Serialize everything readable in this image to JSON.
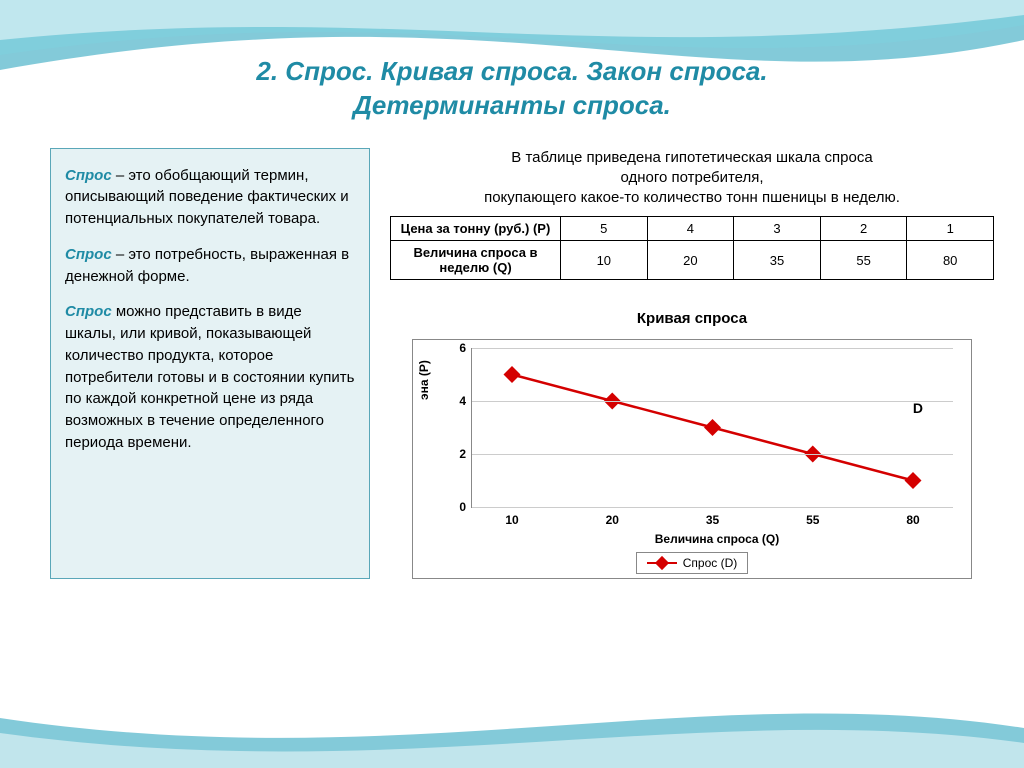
{
  "title_line1": "2. Спрос. Кривая спроса. Закон спроса.",
  "title_line2": "Детерминанты спроса.",
  "definitions": {
    "term": "Спрос",
    "d1_rest": " – это обобщающий термин, описывающий поведение фактических и потенциальных покупателей товара.",
    "d2_rest": " – это потребность, выраженная в денежной форме.",
    "d3_rest": " можно представить в виде шкалы, или кривой, показывающей количество продукта, которое потребители готовы и в состоянии купить по каждой конкретной цене из ряда возможных в течение определенного периода времени."
  },
  "table_intro_l1": "В таблице приведена гипотетическая шкала спроса",
  "table_intro_l2": "одного потребителя,",
  "table_intro_l3": "покупающего какое-то количество тонн пшеницы в неделю.",
  "table": {
    "row1_header": "Цена за тонну (руб.) (P)",
    "row2_header": "Величина спроса в неделю (Q)",
    "prices": [
      "5",
      "4",
      "3",
      "2",
      "1"
    ],
    "quantities": [
      "10",
      "20",
      "35",
      "55",
      "80"
    ]
  },
  "chart": {
    "title": "Кривая спроса",
    "ylabel": "эна (P)",
    "xlabel": "Величина спроса (Q)",
    "legend_label": "Спрос (D)",
    "d_label": "D",
    "yticks": [
      "0",
      "2",
      "4",
      "6"
    ],
    "xticks": [
      "10",
      "20",
      "35",
      "55",
      "80"
    ],
    "series_color": "#d40000",
    "grid_color": "#cccccc",
    "ylim": [
      0,
      6
    ],
    "points": [
      {
        "x": 10,
        "y": 5
      },
      {
        "x": 20,
        "y": 4
      },
      {
        "x": 35,
        "y": 3
      },
      {
        "x": 55,
        "y": 2
      },
      {
        "x": 80,
        "y": 1
      }
    ]
  }
}
